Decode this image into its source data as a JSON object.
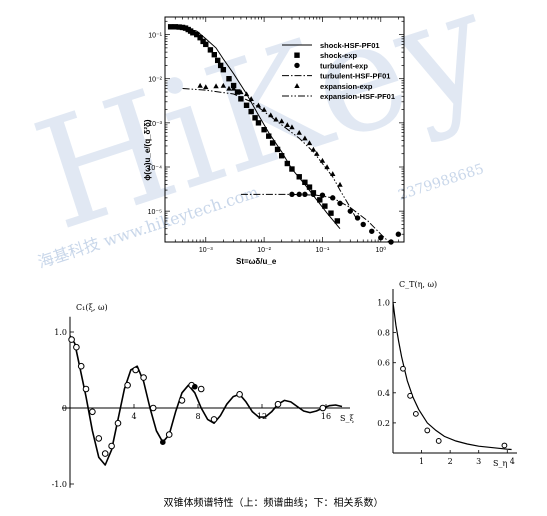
{
  "caption": "双锥体频谱特性（上：频谱曲线；下：相关系数）",
  "watermark": {
    "logo": "HiKey",
    "line1": "海基科技 www.hikeytech.com",
    "line2": "1002",
    "line3": "2379988685"
  },
  "colors": {
    "ink": "#000000",
    "watermark": "#c9d7ea"
  },
  "chart_data": [
    {
      "type": "scatter",
      "id": "spectrum",
      "xlabel": "St=ωδ/u_e",
      "ylabel": "ϕ(ω)u_e/(q_δ²δ)",
      "xscale": "log",
      "yscale": "log",
      "xlim": [
        0.0002,
        2.5
      ],
      "ylim": [
        2e-06,
        0.25
      ],
      "xticks": [
        "10⁻³",
        "10⁻²",
        "10⁻¹",
        "10⁰"
      ],
      "yticks": [
        "10⁻¹",
        "10⁻²",
        "10⁻³",
        "10⁻⁴",
        "10⁻⁵"
      ],
      "legend_position": "top-right",
      "series": [
        {
          "name": "shock-HSF-PF01",
          "style": "solid",
          "x": [
            0.00025,
            0.0004,
            0.0007,
            0.001,
            0.0015,
            0.002,
            0.003,
            0.005,
            0.008,
            0.012,
            0.02,
            0.03,
            0.05,
            0.08,
            0.12,
            0.2
          ],
          "y": [
            0.15,
            0.14,
            0.12,
            0.08,
            0.05,
            0.028,
            0.013,
            0.0045,
            0.0015,
            0.0006,
            0.00022,
            9e-05,
            4e-05,
            1.8e-05,
            9e-06,
            4e-06
          ]
        },
        {
          "name": "shock-exp",
          "marker": "square",
          "x": [
            0.00025,
            0.0003,
            0.00035,
            0.0004,
            0.00045,
            0.0005,
            0.00055,
            0.0006,
            0.0007,
            0.0008,
            0.0009,
            0.001,
            0.0012,
            0.0014,
            0.0016,
            0.0018,
            0.002,
            0.0025,
            0.003,
            0.0035,
            0.004,
            0.005,
            0.006,
            0.007,
            0.008,
            0.01,
            0.012,
            0.014,
            0.017,
            0.02,
            0.025,
            0.03,
            0.04,
            0.05,
            0.06,
            0.07,
            0.09,
            0.11,
            0.14,
            0.18
          ],
          "y": [
            0.15,
            0.15,
            0.148,
            0.145,
            0.14,
            0.13,
            0.12,
            0.11,
            0.1,
            0.085,
            0.07,
            0.06,
            0.045,
            0.035,
            0.026,
            0.02,
            0.016,
            0.01,
            0.007,
            0.005,
            0.0035,
            0.0025,
            0.0018,
            0.0013,
            0.001,
            0.0007,
            0.0005,
            0.00035,
            0.00025,
            0.00018,
            0.00012,
            9e-05,
            6e-05,
            4.5e-05,
            3.5e-05,
            2.6e-05,
            1.8e-05,
            1.3e-05,
            9e-06,
            6e-06
          ]
        },
        {
          "name": "turbulent-exp",
          "marker": "circle",
          "x": [
            0.03,
            0.04,
            0.05,
            0.07,
            0.1,
            0.15,
            0.2,
            0.3,
            0.4,
            0.5,
            0.7,
            1.0,
            1.5,
            2.0
          ],
          "y": [
            2.4e-05,
            2.4e-05,
            2.4e-05,
            2.4e-05,
            2.3e-05,
            2e-05,
            1.5e-05,
            1e-05,
            7e-06,
            5e-06,
            3.5e-06,
            2.5e-06,
            2e-06,
            3e-06
          ]
        },
        {
          "name": "turbulent-HSF-PF01",
          "style": "dashdot",
          "x": [
            0.004,
            0.01,
            0.03,
            0.08,
            0.15,
            0.3,
            0.6,
            1.0,
            1.5
          ],
          "y": [
            2.4e-05,
            2.4e-05,
            2.4e-05,
            2.3e-05,
            2e-05,
            1.2e-05,
            6e-06,
            3e-06,
            1.8e-06
          ]
        },
        {
          "name": "expansion-exp",
          "marker": "triangle",
          "x": [
            0.0008,
            0.001,
            0.0015,
            0.002,
            0.0025,
            0.003,
            0.004,
            0.005,
            0.006,
            0.008,
            0.01,
            0.013,
            0.016,
            0.02,
            0.025,
            0.03,
            0.04,
            0.05,
            0.06,
            0.07,
            0.08,
            0.1,
            0.12,
            0.15,
            0.2
          ],
          "y": [
            0.007,
            0.0065,
            0.0068,
            0.007,
            0.006,
            0.006,
            0.005,
            0.0045,
            0.0035,
            0.0025,
            0.002,
            0.0015,
            0.0012,
            0.0011,
            0.0009,
            0.0008,
            0.0006,
            0.00045,
            0.00035,
            0.00025,
            0.0002,
            0.00014,
            0.0001,
            7e-05,
            4e-05
          ]
        },
        {
          "name": "expansion-HSF-PF01",
          "style": "dashdotdot",
          "x": [
            0.0004,
            0.001,
            0.003,
            0.006,
            0.01,
            0.02,
            0.04,
            0.07,
            0.1,
            0.15,
            0.2,
            0.3,
            0.4
          ],
          "y": [
            0.006,
            0.0055,
            0.0045,
            0.003,
            0.0018,
            0.0009,
            0.00045,
            0.00022,
            0.00012,
            6e-05,
            3e-05,
            1.2e-05,
            6e-06
          ]
        }
      ]
    },
    {
      "type": "line",
      "id": "corr-left",
      "ylabel": "C₁(ξ, ω)",
      "xlabel": "S_ξ",
      "xlim": [
        0,
        17.5
      ],
      "ylim": [
        -1.0,
        1.0
      ],
      "xticks": [
        "4",
        "8",
        "12",
        "16"
      ],
      "yticks": [
        "1.0",
        "0",
        "-1.0"
      ],
      "series": [
        {
          "name": "",
          "style": "solid",
          "x": [
            0,
            0.3,
            0.6,
            1.0,
            1.4,
            1.8,
            2.2,
            2.6,
            3.0,
            3.4,
            3.8,
            4.2,
            4.6,
            5.0,
            5.4,
            5.8,
            6.2,
            6.6,
            7.0,
            7.4,
            7.8,
            8.2,
            8.6,
            9.0,
            9.4,
            9.8,
            10.2,
            10.6,
            11.0,
            11.4,
            11.8,
            12.2,
            12.6,
            13.0,
            13.4,
            13.8,
            14.2,
            14.6,
            15.0,
            15.4,
            15.8,
            16.2,
            16.6,
            17.0
          ],
          "y": [
            0.95,
            0.85,
            0.55,
            0.15,
            -0.3,
            -0.65,
            -0.75,
            -0.55,
            -0.15,
            0.25,
            0.5,
            0.55,
            0.35,
            0.0,
            -0.3,
            -0.45,
            -0.35,
            -0.05,
            0.2,
            0.3,
            0.2,
            0.0,
            -0.15,
            -0.2,
            -0.1,
            0.05,
            0.15,
            0.18,
            0.08,
            -0.05,
            -0.12,
            -0.12,
            -0.05,
            0.05,
            0.1,
            0.08,
            0.02,
            -0.04,
            -0.06,
            -0.04,
            0.0,
            0.03,
            0.04,
            0.02
          ]
        },
        {
          "name": "",
          "marker": "circle-open",
          "x": [
            0.1,
            0.4,
            0.7,
            1.0,
            1.4,
            1.8,
            2.2,
            2.6,
            3.0,
            3.6,
            4.1,
            4.6,
            5.2,
            6.2,
            7.0,
            7.6,
            8.2,
            9.0,
            10.6,
            13.0,
            15.8
          ],
          "y": [
            0.9,
            0.8,
            0.55,
            0.25,
            -0.05,
            -0.4,
            -0.6,
            -0.5,
            -0.2,
            0.3,
            0.5,
            0.4,
            0.0,
            -0.35,
            0.1,
            0.3,
            0.25,
            -0.15,
            0.18,
            0.05,
            0.0
          ]
        },
        {
          "name": "",
          "marker": "circle-filled",
          "x": [
            5.8,
            7.8
          ],
          "y": [
            -0.45,
            0.28
          ]
        }
      ]
    },
    {
      "type": "line",
      "id": "corr-right",
      "ylabel": "C_T(η, ω)",
      "xlabel": "S_η",
      "xlim": [
        0,
        4.2
      ],
      "ylim": [
        0,
        1.05
      ],
      "xticks": [
        "1",
        "2",
        "3",
        "4"
      ],
      "yticks": [
        "1.0",
        "0.8",
        "0.6",
        "0.4",
        "0.2"
      ],
      "series": [
        {
          "name": "",
          "style": "solid",
          "x": [
            0,
            0.1,
            0.2,
            0.3,
            0.4,
            0.5,
            0.7,
            0.9,
            1.2,
            1.5,
            1.8,
            2.2,
            2.6,
            3.0,
            3.5,
            4.0,
            4.15
          ],
          "y": [
            1.0,
            0.85,
            0.74,
            0.64,
            0.56,
            0.48,
            0.37,
            0.29,
            0.2,
            0.15,
            0.11,
            0.08,
            0.06,
            0.045,
            0.035,
            0.025,
            0.023
          ]
        },
        {
          "name": "",
          "marker": "circle-open",
          "x": [
            0.35,
            0.6,
            0.8,
            1.2,
            1.6,
            3.9
          ],
          "y": [
            0.56,
            0.38,
            0.26,
            0.15,
            0.08,
            0.05
          ]
        }
      ]
    }
  ],
  "legend": [
    {
      "label": "shock-HSF-PF01",
      "style": "solid"
    },
    {
      "label": "shock-exp",
      "marker": "square"
    },
    {
      "label": "turbulent-exp",
      "marker": "circle"
    },
    {
      "label": "turbulent-HSF-PF01",
      "style": "dashdot"
    },
    {
      "label": "expansion-exp",
      "marker": "triangle"
    },
    {
      "label": "expansion-HSF-PF01",
      "style": "dashdotdot"
    }
  ]
}
